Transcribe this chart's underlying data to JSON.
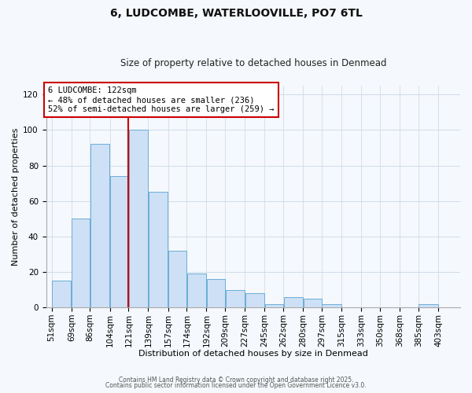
{
  "title": "6, LUDCOMBE, WATERLOOVILLE, PO7 6TL",
  "subtitle": "Size of property relative to detached houses in Denmead",
  "xlabel": "Distribution of detached houses by size in Denmead",
  "ylabel": "Number of detached properties",
  "bar_values": [
    15,
    50,
    92,
    74,
    100,
    65,
    32,
    19,
    16,
    10,
    8,
    2,
    6,
    5,
    2,
    0,
    0,
    0,
    0,
    2
  ],
  "bin_labels": [
    "51sqm",
    "69sqm",
    "86sqm",
    "104sqm",
    "121sqm",
    "139sqm",
    "157sqm",
    "174sqm",
    "192sqm",
    "209sqm",
    "227sqm",
    "245sqm",
    "262sqm",
    "280sqm",
    "297sqm",
    "315sqm",
    "333sqm",
    "350sqm",
    "368sqm",
    "385sqm",
    "403sqm"
  ],
  "bar_color": "#cde0f5",
  "bar_edge_color": "#6aaed6",
  "vline_color": "#cc0000",
  "annotation_title": "6 LUDCOMBE: 122sqm",
  "annotation_line2": "← 48% of detached houses are smaller (236)",
  "annotation_line3": "52% of semi-detached houses are larger (259) →",
  "annotation_box_facecolor": "#ffffff",
  "annotation_box_edgecolor": "#cc0000",
  "ylim_max": 125,
  "yticks": [
    0,
    20,
    40,
    60,
    80,
    100,
    120
  ],
  "grid_color": "#c8d8e8",
  "background_color": "#ffffff",
  "fig_background": "#f5f8fc",
  "footnote1": "Contains HM Land Registry data © Crown copyright and database right 2025.",
  "footnote2": "Contains public sector information licensed under the Open Government Licence v3.0.",
  "title_fontsize": 10,
  "subtitle_fontsize": 8.5,
  "axis_label_fontsize": 8,
  "tick_fontsize": 7.5,
  "annotation_fontsize": 7.5,
  "footnote_fontsize": 5.5
}
